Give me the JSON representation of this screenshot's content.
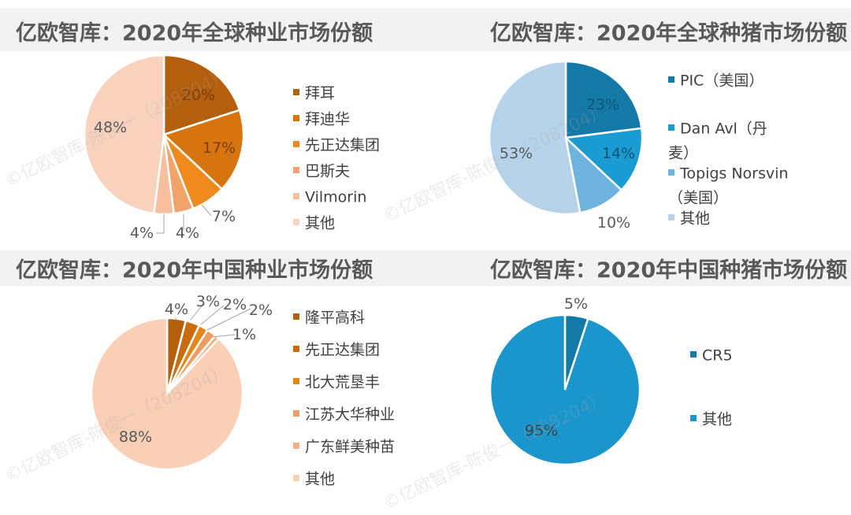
{
  "chart_data": [
    {
      "type": "pie",
      "title": "亿欧智库：2020年全球种业市场份额",
      "categories": [
        "拜耳",
        "拜迪华",
        "先正达集团",
        "巴斯夫",
        "Vilmorin",
        "其他"
      ],
      "values": [
        20,
        17,
        7,
        4,
        4,
        48
      ],
      "labels": [
        "20%",
        "17%",
        "7%",
        "4%",
        "4%",
        "48%"
      ],
      "colors": [
        "#b35f0e",
        "#d6750f",
        "#ee8a1e",
        "#f2a36b",
        "#f7bf9d",
        "#f9d2be"
      ],
      "legend": "right"
    },
    {
      "type": "pie",
      "title": "亿欧智库：2020年全球种猪市场份额",
      "categories": [
        "PIC（美国）",
        "Dan Avl（丹麦）",
        "Topigs Norsvin（美国）",
        "其他"
      ],
      "values": [
        23,
        14,
        10,
        53
      ],
      "labels": [
        "23%",
        "14%",
        "10%",
        "53%"
      ],
      "colors": [
        "#1479a6",
        "#1a9bd1",
        "#6db3dd",
        "#b6d3ea"
      ],
      "legend": "right"
    },
    {
      "type": "pie",
      "title": "亿欧智库：2020年中国种业市场份额",
      "categories": [
        "隆平高科",
        "先正达集团",
        "北大荒垦丰",
        "江苏大华种业",
        "广东鲜美种苗",
        "其他"
      ],
      "values": [
        4,
        3,
        2,
        2,
        1,
        88
      ],
      "labels": [
        "4%",
        "3%",
        "2%",
        "2%",
        "1%",
        "88%"
      ],
      "colors": [
        "#b35f0e",
        "#c96c0f",
        "#e48618",
        "#f09b62",
        "#f5b186",
        "#f9cfb6"
      ],
      "legend": "right"
    },
    {
      "type": "pie",
      "title": "亿欧智库：2020年中国种猪市场份额",
      "categories": [
        "CR5",
        "其他"
      ],
      "values": [
        5,
        95
      ],
      "labels": [
        "5%",
        "95%"
      ],
      "colors": [
        "#1479a6",
        "#1a96cd"
      ],
      "legend": "right"
    }
  ],
  "watermark_text": "©亿欧智库-陈俊一（208204）"
}
